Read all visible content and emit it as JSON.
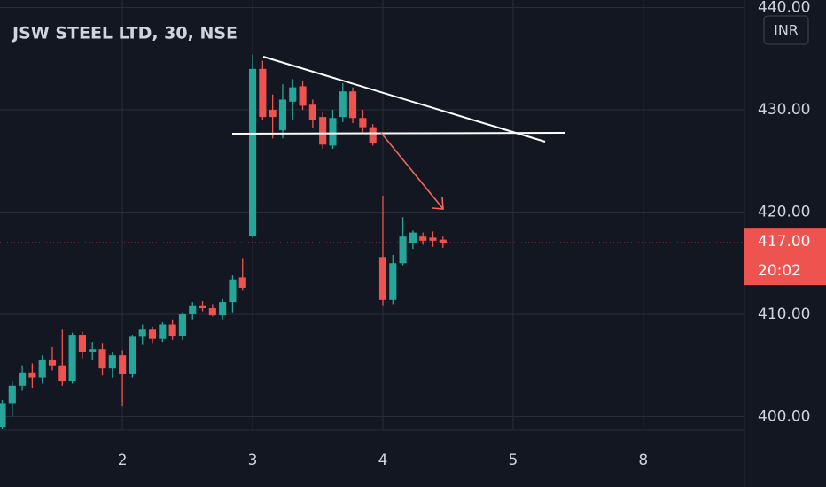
{
  "chart_data": {
    "type": "candlestick",
    "title": "JSW STEEL LTD, 30, NSE",
    "currency_label": "INR",
    "countdown": "20:02",
    "last_price": {
      "value": 417,
      "label": "417.00"
    },
    "up_color": "#26a69a",
    "down_color": "#ef5350",
    "grid": true,
    "x": [
      1,
      2,
      3,
      4,
      5,
      6,
      7,
      8,
      9,
      10,
      11,
      12,
      13,
      14,
      15,
      16,
      17,
      18,
      19,
      20,
      21,
      22,
      23,
      24,
      25,
      26,
      27,
      28,
      29,
      30,
      31,
      32,
      33,
      34,
      35,
      36,
      37,
      38,
      39,
      40,
      41,
      42,
      43,
      44,
      45
    ],
    "open": [
      399,
      401.3,
      403,
      404.3,
      403.8,
      405.5,
      405,
      403.5,
      408,
      406.3,
      406.6,
      404.7,
      406,
      404.2,
      407.8,
      408.5,
      407.6,
      409,
      407.9,
      410,
      410.8,
      410.6,
      409.9,
      411.2,
      413.6,
      417.7,
      434,
      430,
      428,
      430.8,
      432.3,
      430.5,
      429.3,
      426.5,
      429.3,
      431.8,
      429.2,
      428.3,
      415.6,
      411.4,
      415,
      417,
      417.6,
      417.5,
      417.3
    ],
    "high": [
      401.6,
      403.5,
      405,
      405.2,
      406,
      406.8,
      408.5,
      408.2,
      408.3,
      407.3,
      407.2,
      406.3,
      406.5,
      408,
      409,
      408.8,
      409.2,
      409.5,
      410.2,
      411.2,
      411.3,
      411,
      411.5,
      413.8,
      415.5,
      435.4,
      434.8,
      431.5,
      432.5,
      433,
      432.8,
      431,
      429.8,
      430,
      432.6,
      432.2,
      430,
      428.6,
      421.6,
      415.8,
      419.5,
      418.2,
      418,
      418.1,
      417.6
    ],
    "low": [
      398.8,
      400,
      402.5,
      402.8,
      403.2,
      404.5,
      403,
      403.2,
      405.7,
      405.5,
      404,
      403.8,
      401,
      403.8,
      407,
      407.2,
      407.3,
      407.5,
      407.5,
      409.5,
      410.3,
      409.8,
      409.5,
      410.2,
      412.3,
      417.5,
      429,
      427.2,
      427.2,
      429,
      430,
      428.2,
      426.2,
      426.2,
      428.8,
      428.7,
      427.8,
      426.5,
      410.8,
      411,
      414.8,
      416.4,
      416.8,
      416.6,
      416.5
    ],
    "close": [
      401.3,
      403,
      404.3,
      403.8,
      405.5,
      405,
      403.5,
      408,
      406.3,
      406.6,
      404.7,
      406,
      404.2,
      407.8,
      408.5,
      407.6,
      409,
      407.9,
      410,
      410.8,
      410.6,
      409.9,
      411.2,
      413.4,
      412.6,
      434,
      429.3,
      429.3,
      431,
      432.2,
      430.4,
      429,
      426.6,
      429.2,
      431.8,
      429.2,
      428.3,
      426.8,
      411.4,
      415,
      417.6,
      418,
      417.2,
      417.2,
      417.0
    ],
    "xlim": [
      0.78,
      75.1
    ],
    "xticks": [
      {
        "value": 13,
        "label": "2"
      },
      {
        "value": 26,
        "label": "3"
      },
      {
        "value": 39,
        "label": "4"
      },
      {
        "value": 52,
        "label": "5"
      },
      {
        "value": 65,
        "label": "8"
      }
    ],
    "ylim": [
      398.74,
      440.74
    ],
    "yticks": [
      {
        "value": 400,
        "label": "400.00"
      },
      {
        "value": 410,
        "label": "410.00"
      },
      {
        "value": 420,
        "label": "420.00"
      },
      {
        "value": 430,
        "label": "430.00"
      },
      {
        "value": 440,
        "label": "440.00"
      }
    ]
  }
}
